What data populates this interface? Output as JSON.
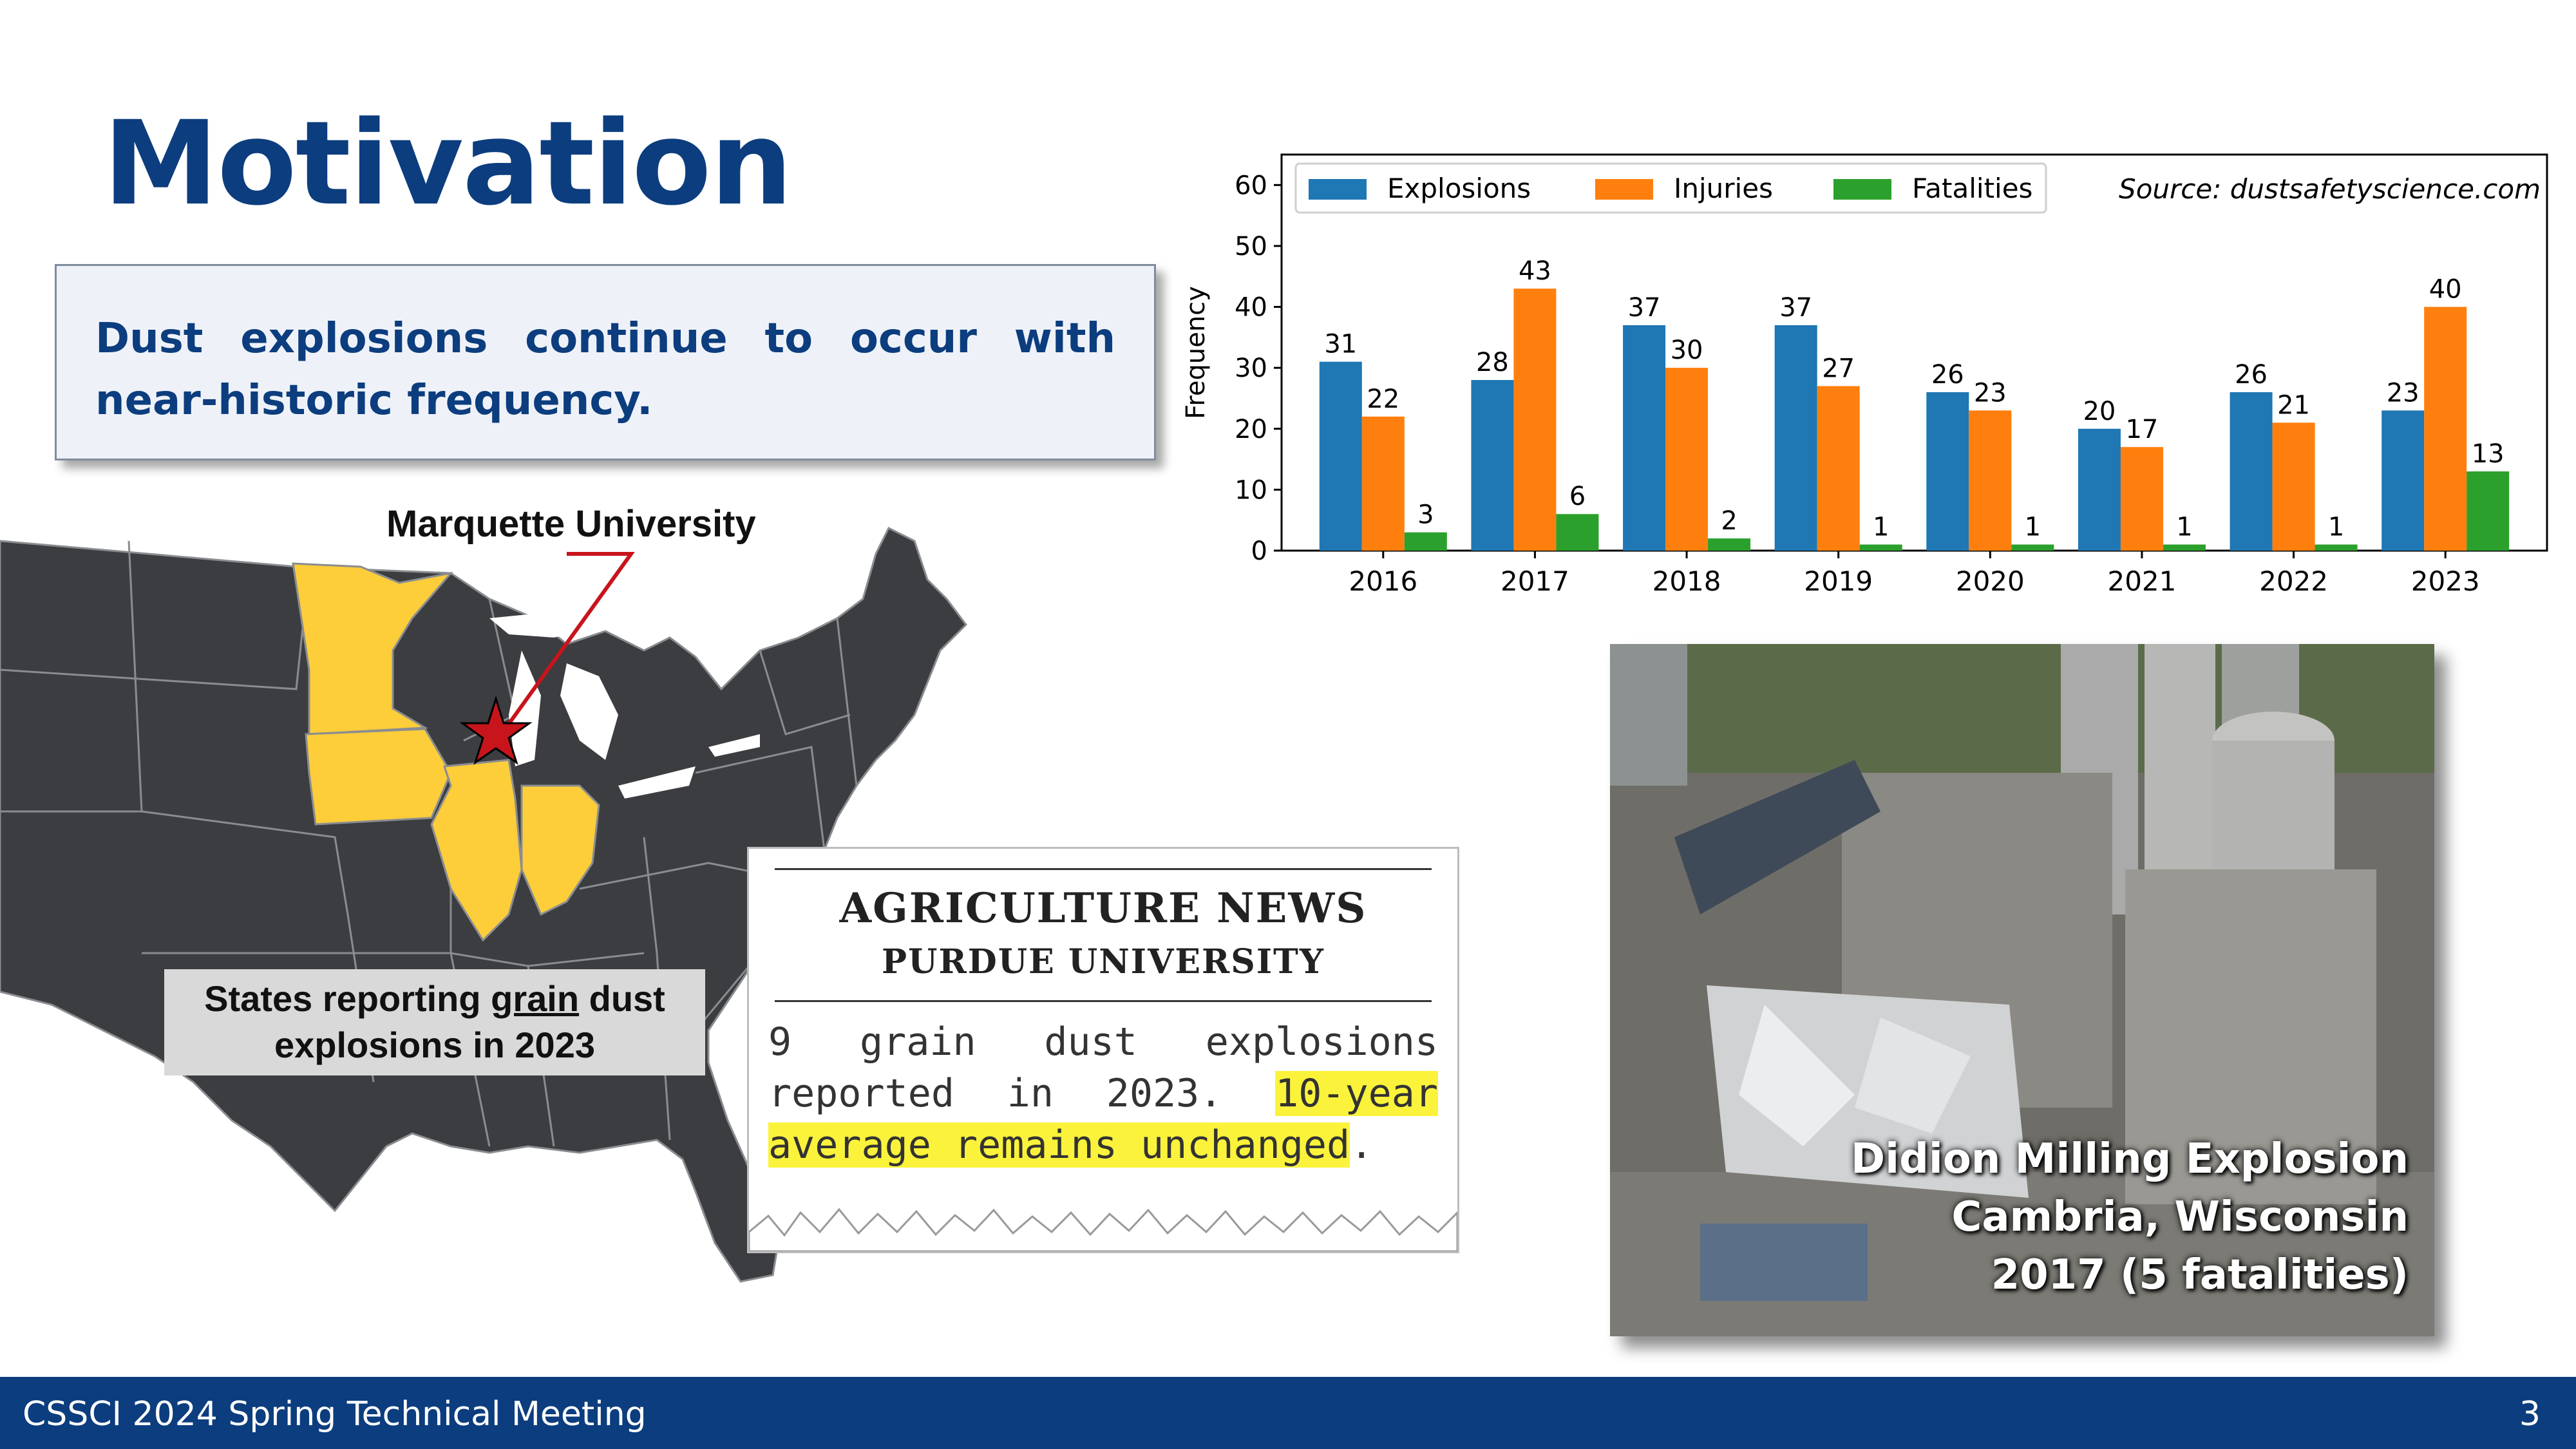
{
  "slide": {
    "title": "Motivation",
    "callout": "Dust explosions continue to occur with near-historic frequency."
  },
  "map": {
    "marker_label": "Marquette University",
    "caption_part1": "States reporting ",
    "caption_underlined": "grain",
    "caption_part2": " dust",
    "caption_line2": "explosions in 2023",
    "colors": {
      "land": "#3b3d40",
      "highlight": "#fdcd3a",
      "marker": "#c8141b"
    }
  },
  "news": {
    "headline": "AGRICULTURE NEWS",
    "subheadline": "PURDUE UNIVERSITY",
    "text_line1": "9 grain dust explosions",
    "text_line2_plain": "reported in 2023.",
    "text_line2_highlight": "10-year",
    "text_line3_highlight": "average remains unchanged",
    "text_line3_end": "."
  },
  "photo": {
    "caption_line1": "Didion Milling Explosion",
    "caption_line2": "Cambria, Wisconsin",
    "caption_line3": "2017 (5 fatalities)"
  },
  "chart_data": {
    "type": "bar",
    "categories": [
      "2016",
      "2017",
      "2018",
      "2019",
      "2020",
      "2021",
      "2022",
      "2023"
    ],
    "series": [
      {
        "name": "Explosions",
        "values": [
          31,
          28,
          37,
          37,
          26,
          20,
          26,
          23
        ],
        "color": "#1f77b4"
      },
      {
        "name": "Injuries",
        "values": [
          22,
          43,
          30,
          27,
          23,
          17,
          21,
          40
        ],
        "color": "#ff7f0e"
      },
      {
        "name": "Fatalities",
        "values": [
          3,
          6,
          2,
          1,
          1,
          1,
          1,
          13
        ],
        "color": "#2ca02c"
      }
    ],
    "ylabel": "Frequency",
    "yticks": [
      0,
      10,
      20,
      30,
      40,
      50,
      60
    ],
    "ylim": [
      0,
      65
    ],
    "source_note": "Source: dustsafetyscience.com",
    "legend_position": "top-left",
    "grid": false
  },
  "footer": {
    "left": "CSSCI 2024 Spring Technical Meeting",
    "page_number": "3"
  }
}
